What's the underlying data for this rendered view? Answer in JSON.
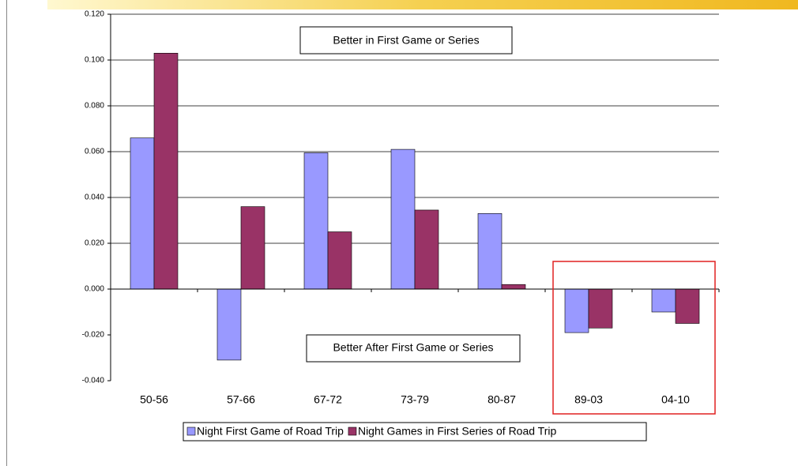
{
  "chart_data": {
    "type": "bar",
    "categories": [
      "50-56",
      "57-66",
      "67-72",
      "73-79",
      "80-87",
      "89-03",
      "04-10"
    ],
    "series": [
      {
        "name": "Night First Game of Road Trip",
        "color": "#9999ff",
        "values": [
          0.066,
          -0.031,
          0.0595,
          0.061,
          0.033,
          -0.019,
          -0.01
        ]
      },
      {
        "name": "Night Games in First Series of Road Trip",
        "color": "#993366",
        "values": [
          0.103,
          0.036,
          0.025,
          0.0345,
          0.002,
          -0.017,
          -0.015
        ]
      }
    ],
    "ylim": [
      -0.04,
      0.12
    ],
    "yticks": [
      {
        "value": -0.04,
        "label": "-0.040"
      },
      {
        "value": -0.02,
        "label": "-0.020"
      },
      {
        "value": 0,
        "label": "0.000"
      },
      {
        "value": 0.02,
        "label": "0.020"
      },
      {
        "value": 0.04,
        "label": "0.040"
      },
      {
        "value": 0.06,
        "label": "0.060"
      },
      {
        "value": 0.08,
        "label": "0.080"
      },
      {
        "value": 0.1,
        "label": "0.100"
      },
      {
        "value": 0.12,
        "label": "0.120"
      }
    ],
    "grid": true,
    "annotations": [
      "Better in First Game or Series",
      "Better After First Game or Series"
    ]
  }
}
